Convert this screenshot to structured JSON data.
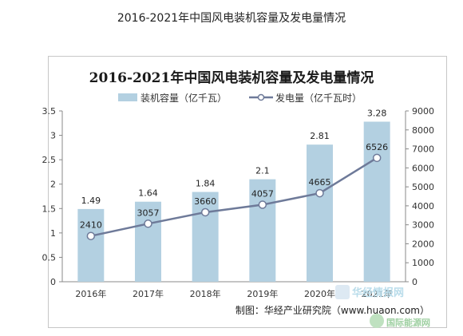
{
  "page": {
    "title": "2016-2021年中国风电装机容量及发电量情况"
  },
  "chart_data": {
    "type": "bar",
    "title": "2016-2021年中国风电装机容量及发电量情况",
    "categories": [
      "2016年",
      "2017年",
      "2018年",
      "2019年",
      "2020年",
      "2021年"
    ],
    "series": [
      {
        "name": "装机容量（亿千瓦）",
        "type": "bar",
        "axis": "left",
        "values": [
          1.49,
          1.64,
          1.84,
          2.1,
          2.81,
          3.28
        ],
        "labels": [
          "1.49",
          "1.64",
          "1.84",
          "2.1",
          "2.81",
          "3.28"
        ]
      },
      {
        "name": "发电量（亿千瓦时）",
        "type": "line",
        "axis": "right",
        "values": [
          2410,
          3057,
          3660,
          4057,
          4665,
          6526
        ],
        "labels": [
          "2410",
          "3057",
          "3660",
          "4057",
          "4665",
          "6526"
        ]
      }
    ],
    "y_left": {
      "min": 0,
      "max": 3.5,
      "ticks": [
        "0",
        "0.5",
        "1",
        "1.5",
        "2",
        "2.5",
        "3",
        "3.5"
      ]
    },
    "y_right": {
      "min": 0,
      "max": 9000,
      "ticks": [
        "0",
        "1000",
        "2000",
        "3000",
        "4000",
        "5000",
        "6000",
        "7000",
        "8000",
        "9000"
      ]
    },
    "grid": false,
    "legend": "top-center",
    "colors": {
      "bar": "#b3d0e1",
      "line": "#6e7a99",
      "marker": "#ffffff"
    },
    "source": "制图：华经产业研究院（www.huaon.com）",
    "watermark": {
      "line1": "华经情报网",
      "line2": "国际能源网"
    }
  }
}
